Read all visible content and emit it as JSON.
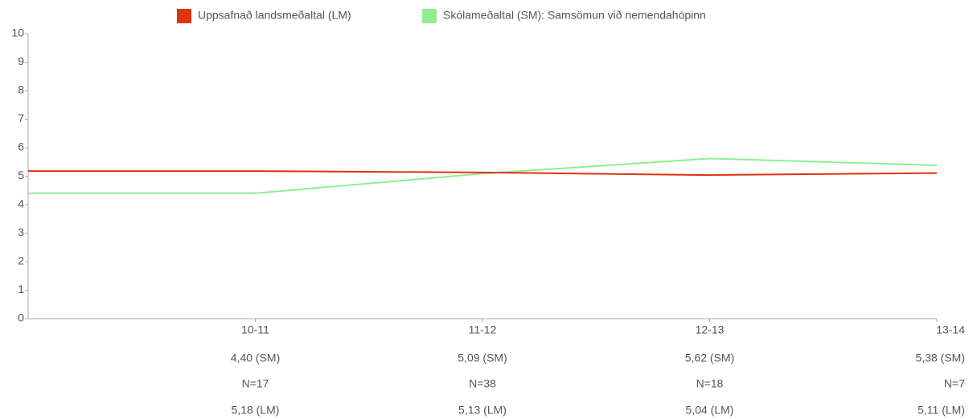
{
  "chart_data": {
    "type": "line",
    "categories": [
      null,
      "10-11",
      "11-12",
      "12-13",
      "13-14"
    ],
    "series": [
      {
        "name": "Uppsafnað landsmeðaltal (LM)",
        "color": "#dd3311",
        "values": [
          5.18,
          5.18,
          5.13,
          5.04,
          5.11
        ],
        "value_labels": [
          null,
          "5,18 (LM)",
          "5,13 (LM)",
          "5,04 (LM)",
          "5,11 (LM)"
        ]
      },
      {
        "name": "Skólameðaltal (SM): Samsömun við nemendahópinn",
        "color": "#90ee90",
        "values": [
          4.4,
          4.4,
          5.09,
          5.62,
          5.38
        ],
        "value_labels": [
          null,
          "4,40 (SM)",
          "5,09 (SM)",
          "5,62 (SM)",
          "5,38 (SM)"
        ]
      }
    ],
    "sample_sizes": [
      null,
      "N=17",
      "N=38",
      "N=18",
      "N=7"
    ],
    "ylim": [
      0,
      10
    ],
    "yticks": [
      0,
      1,
      2,
      3,
      4,
      5,
      6,
      7,
      8,
      9,
      10
    ],
    "grid": false,
    "legend": "top"
  }
}
